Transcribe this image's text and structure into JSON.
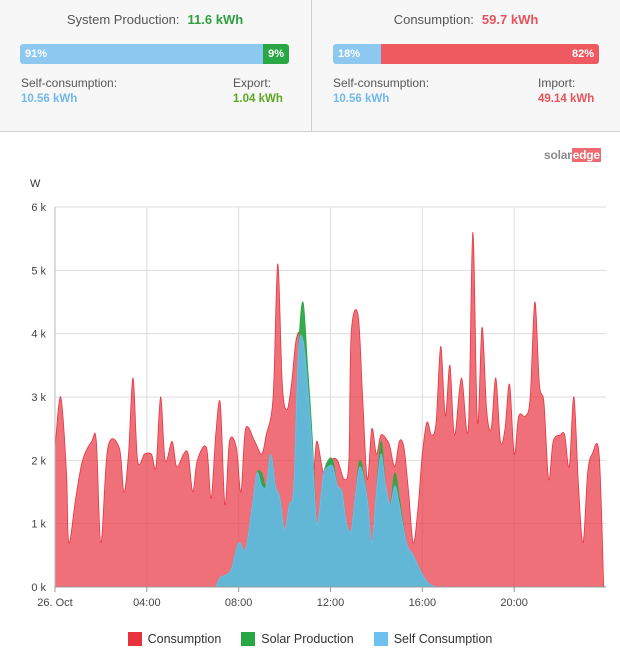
{
  "production": {
    "label": "System Production:",
    "value": "11.6 kWh",
    "bar_self_pct": "91%",
    "bar_export_pct": "9%",
    "self_fraction": 0.91,
    "self_label": "Self-consumption:",
    "self_value": "10.56 kWh",
    "export_label": "Export:",
    "export_value": "1.04 kWh"
  },
  "consumption": {
    "label": "Consumption:",
    "value": "59.7 kWh",
    "bar_self_pct": "18%",
    "bar_import_pct": "82%",
    "self_fraction": 0.18,
    "self_label": "Self-consumption:",
    "self_value": "10.56 kWh",
    "import_label": "Import:",
    "import_value": "49.14 kWh"
  },
  "logo": {
    "part1": "solar",
    "part2": "edge"
  },
  "colors": {
    "consumption": "#e8333f",
    "solar": "#2aa745",
    "self": "#6ec0f0"
  },
  "chart_data": {
    "type": "area",
    "ylabel": "W",
    "ylim": [
      0,
      6000
    ],
    "yticks": [
      "0 k",
      "1 k",
      "2 k",
      "3 k",
      "4 k",
      "5 k",
      "6 k"
    ],
    "xlim": [
      0,
      24
    ],
    "xticks": [
      {
        "h": 0,
        "label": "26. Oct"
      },
      {
        "h": 4,
        "label": "04:00"
      },
      {
        "h": 8,
        "label": "08:00"
      },
      {
        "h": 12,
        "label": "12:00"
      },
      {
        "h": 16,
        "label": "16:00"
      },
      {
        "h": 20,
        "label": "20:00"
      }
    ],
    "grid": true,
    "legend_position": "bottom",
    "series": [
      {
        "name": "Consumption",
        "color": "#e8333f",
        "points": [
          [
            0,
            2200
          ],
          [
            0.25,
            3000
          ],
          [
            0.5,
            1800
          ],
          [
            0.6,
            700
          ],
          [
            0.9,
            1400
          ],
          [
            1.2,
            2000
          ],
          [
            1.6,
            2300
          ],
          [
            1.8,
            2300
          ],
          [
            2.0,
            700
          ],
          [
            2.3,
            2200
          ],
          [
            2.8,
            2200
          ],
          [
            3.0,
            1500
          ],
          [
            3.2,
            2100
          ],
          [
            3.4,
            3300
          ],
          [
            3.6,
            2000
          ],
          [
            3.9,
            2100
          ],
          [
            4.2,
            2100
          ],
          [
            4.4,
            1900
          ],
          [
            4.6,
            3000
          ],
          [
            4.8,
            2000
          ],
          [
            5.1,
            2300
          ],
          [
            5.3,
            1900
          ],
          [
            5.6,
            2100
          ],
          [
            5.8,
            2100
          ],
          [
            6.0,
            1500
          ],
          [
            6.2,
            2000
          ],
          [
            6.6,
            2200
          ],
          [
            6.8,
            1400
          ],
          [
            7.0,
            2400
          ],
          [
            7.2,
            2900
          ],
          [
            7.4,
            1300
          ],
          [
            7.6,
            2300
          ],
          [
            7.9,
            2200
          ],
          [
            8.1,
            1500
          ],
          [
            8.3,
            2500
          ],
          [
            8.7,
            2300
          ],
          [
            9.0,
            2100
          ],
          [
            9.2,
            2400
          ],
          [
            9.5,
            3000
          ],
          [
            9.7,
            5100
          ],
          [
            9.9,
            3200
          ],
          [
            10.1,
            2800
          ],
          [
            10.3,
            3200
          ],
          [
            10.5,
            3900
          ],
          [
            10.7,
            3900
          ],
          [
            10.9,
            2700
          ],
          [
            11.2,
            1600
          ],
          [
            11.4,
            2300
          ],
          [
            11.7,
            1800
          ],
          [
            12.0,
            2000
          ],
          [
            12.3,
            2000
          ],
          [
            12.6,
            1700
          ],
          [
            12.8,
            2000
          ],
          [
            12.9,
            4000
          ],
          [
            13.2,
            4300
          ],
          [
            13.4,
            3000
          ],
          [
            13.6,
            1700
          ],
          [
            13.8,
            2500
          ],
          [
            14.0,
            2100
          ],
          [
            14.2,
            2400
          ],
          [
            14.5,
            2300
          ],
          [
            14.6,
            2200
          ],
          [
            14.8,
            1900
          ],
          [
            15.0,
            2300
          ],
          [
            15.2,
            2200
          ],
          [
            15.4,
            1500
          ],
          [
            15.6,
            700
          ],
          [
            15.8,
            1200
          ],
          [
            16.0,
            2100
          ],
          [
            16.2,
            2600
          ],
          [
            16.4,
            2400
          ],
          [
            16.6,
            2600
          ],
          [
            16.8,
            3800
          ],
          [
            17.0,
            2700
          ],
          [
            17.2,
            3500
          ],
          [
            17.4,
            2400
          ],
          [
            17.7,
            3300
          ],
          [
            18.0,
            2500
          ],
          [
            18.2,
            5600
          ],
          [
            18.4,
            2600
          ],
          [
            18.6,
            4100
          ],
          [
            18.8,
            2800
          ],
          [
            19.0,
            2500
          ],
          [
            19.2,
            3300
          ],
          [
            19.4,
            2300
          ],
          [
            19.6,
            2500
          ],
          [
            19.8,
            3200
          ],
          [
            20.0,
            2100
          ],
          [
            20.2,
            2700
          ],
          [
            20.5,
            2700
          ],
          [
            20.7,
            3000
          ],
          [
            20.9,
            4500
          ],
          [
            21.1,
            3200
          ],
          [
            21.3,
            2900
          ],
          [
            21.5,
            1700
          ],
          [
            21.7,
            2300
          ],
          [
            22.0,
            2400
          ],
          [
            22.2,
            2400
          ],
          [
            22.4,
            1900
          ],
          [
            22.6,
            3000
          ],
          [
            22.8,
            1600
          ],
          [
            23.0,
            700
          ],
          [
            23.2,
            1800
          ],
          [
            23.4,
            2100
          ],
          [
            23.7,
            2100
          ],
          [
            23.9,
            0
          ]
        ]
      },
      {
        "name": "Solar Production",
        "color": "#2aa745",
        "points": [
          [
            7.0,
            0
          ],
          [
            7.2,
            150
          ],
          [
            7.5,
            200
          ],
          [
            7.7,
            300
          ],
          [
            8.0,
            700
          ],
          [
            8.3,
            600
          ],
          [
            8.6,
            1300
          ],
          [
            8.8,
            1800
          ],
          [
            9.0,
            1800
          ],
          [
            9.2,
            1600
          ],
          [
            9.4,
            2100
          ],
          [
            9.6,
            1600
          ],
          [
            9.8,
            1400
          ],
          [
            10.0,
            900
          ],
          [
            10.2,
            1300
          ],
          [
            10.4,
            1600
          ],
          [
            10.6,
            3700
          ],
          [
            10.8,
            4500
          ],
          [
            11.0,
            3500
          ],
          [
            11.2,
            2400
          ],
          [
            11.4,
            1000
          ],
          [
            11.6,
            1500
          ],
          [
            11.7,
            1800
          ],
          [
            11.9,
            2000
          ],
          [
            12.1,
            2000
          ],
          [
            12.3,
            1600
          ],
          [
            12.5,
            1500
          ],
          [
            12.7,
            1000
          ],
          [
            12.9,
            900
          ],
          [
            13.1,
            1500
          ],
          [
            13.3,
            2000
          ],
          [
            13.6,
            1400
          ],
          [
            13.8,
            700
          ],
          [
            14.0,
            1500
          ],
          [
            14.2,
            2300
          ],
          [
            14.4,
            1600
          ],
          [
            14.6,
            1300
          ],
          [
            14.8,
            1800
          ],
          [
            15.0,
            1400
          ],
          [
            15.3,
            700
          ],
          [
            15.6,
            500
          ],
          [
            16.0,
            200
          ],
          [
            16.3,
            50
          ],
          [
            16.6,
            0
          ]
        ]
      },
      {
        "name": "Self Consumption",
        "color": "#6ec0f0",
        "points": [
          [
            7.0,
            0
          ],
          [
            7.2,
            150
          ],
          [
            7.5,
            200
          ],
          [
            7.7,
            300
          ],
          [
            8.0,
            700
          ],
          [
            8.3,
            600
          ],
          [
            8.6,
            1300
          ],
          [
            8.8,
            1800
          ],
          [
            9.0,
            1600
          ],
          [
            9.2,
            1600
          ],
          [
            9.4,
            2100
          ],
          [
            9.6,
            1600
          ],
          [
            9.8,
            1400
          ],
          [
            10.0,
            900
          ],
          [
            10.2,
            1300
          ],
          [
            10.4,
            1600
          ],
          [
            10.6,
            3700
          ],
          [
            10.8,
            3900
          ],
          [
            11.0,
            3200
          ],
          [
            11.2,
            2200
          ],
          [
            11.4,
            1000
          ],
          [
            11.6,
            1500
          ],
          [
            11.7,
            1800
          ],
          [
            11.9,
            1900
          ],
          [
            12.1,
            1900
          ],
          [
            12.3,
            1600
          ],
          [
            12.5,
            1500
          ],
          [
            12.7,
            1000
          ],
          [
            12.9,
            900
          ],
          [
            13.1,
            1500
          ],
          [
            13.3,
            1900
          ],
          [
            13.6,
            1400
          ],
          [
            13.8,
            700
          ],
          [
            14.0,
            1500
          ],
          [
            14.2,
            2100
          ],
          [
            14.4,
            1600
          ],
          [
            14.6,
            1300
          ],
          [
            14.8,
            1600
          ],
          [
            15.0,
            1300
          ],
          [
            15.3,
            700
          ],
          [
            15.6,
            500
          ],
          [
            16.0,
            200
          ],
          [
            16.3,
            50
          ],
          [
            16.6,
            0
          ]
        ]
      }
    ]
  }
}
